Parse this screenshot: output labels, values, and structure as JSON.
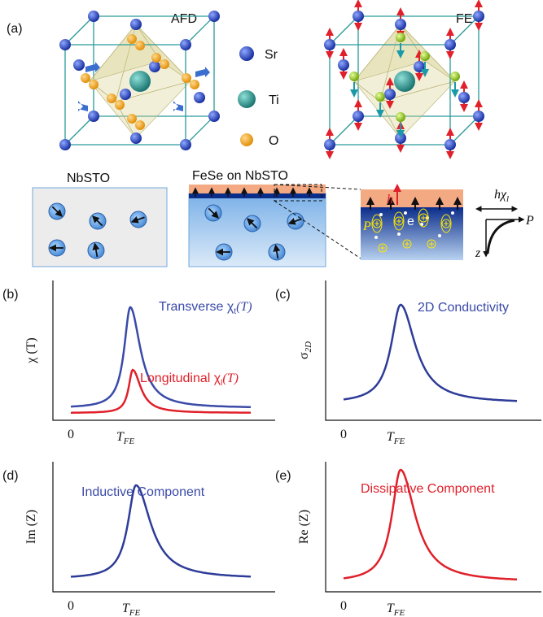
{
  "panel_a": {
    "label": "(a)",
    "afd": "AFD",
    "fe": "FE",
    "legend": [
      "Sr",
      "Ti",
      "O"
    ],
    "nbsto": "NbSTO",
    "fese": "FeSe on NbSTO",
    "inset": {
      "h": "h",
      "e": "e",
      "p": "P",
      "axis_h": "h",
      "axis_chi": "χ",
      "axis_sub": "l",
      "axis_p": "P",
      "axis_z": "z"
    }
  },
  "panel_b": {
    "label": "(b)",
    "ylabel": "χ (T)",
    "transverse": {
      "text": "Transverse χ",
      "sub": "t",
      "arg": "(T)"
    },
    "longitudinal": {
      "text": "Longitudinal χ",
      "sub": "l",
      "arg": "(T)"
    },
    "x0": "0",
    "xT": "T",
    "xsub": "FE"
  },
  "panel_c": {
    "label": "(c)",
    "ylabel": "σ",
    "ysub": "2D",
    "legend": "2D Conductivity",
    "x0": "0",
    "xT": "T",
    "xsub": "FE"
  },
  "panel_d": {
    "label": "(d)",
    "ylabel": "Im (Z)",
    "legend": "Inductive Component",
    "x0": "0",
    "xT": "T",
    "xsub": "FE"
  },
  "panel_e": {
    "label": "(e)",
    "ylabel": "Re (Z)",
    "legend": "Dissipative Component",
    "x0": "0",
    "xT": "T",
    "xsub": "FE"
  }
}
